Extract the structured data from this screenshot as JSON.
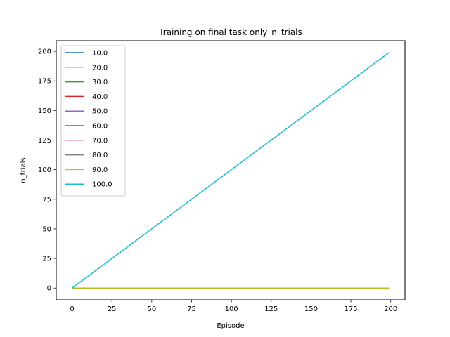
{
  "chart_data": {
    "type": "line",
    "title": "Training on final task only_n_trials",
    "xlabel": "Episode",
    "ylabel": "n_trials",
    "xlim": [
      -9.95,
      208.95
    ],
    "ylim": [
      -9.95,
      208.95
    ],
    "x_ticks": [
      0,
      25,
      50,
      75,
      100,
      125,
      150,
      175,
      200
    ],
    "y_ticks": [
      0,
      25,
      50,
      75,
      100,
      125,
      150,
      175,
      200
    ],
    "grid": false,
    "legend_position": "upper left",
    "series": [
      {
        "name": "10.0",
        "color": "#1f77b4",
        "x": [
          0,
          199
        ],
        "y": [
          0,
          0
        ]
      },
      {
        "name": "20.0",
        "color": "#ff7f0e",
        "x": [
          0,
          199
        ],
        "y": [
          0,
          0
        ]
      },
      {
        "name": "30.0",
        "color": "#2ca02c",
        "x": [
          0,
          199
        ],
        "y": [
          0,
          0
        ]
      },
      {
        "name": "40.0",
        "color": "#d62728",
        "x": [
          0,
          199
        ],
        "y": [
          0,
          0
        ]
      },
      {
        "name": "50.0",
        "color": "#9467bd",
        "x": [
          0,
          199
        ],
        "y": [
          0,
          0
        ]
      },
      {
        "name": "60.0",
        "color": "#8c564b",
        "x": [
          0,
          199
        ],
        "y": [
          0,
          0
        ]
      },
      {
        "name": "70.0",
        "color": "#e377c2",
        "x": [
          0,
          199
        ],
        "y": [
          0,
          0
        ]
      },
      {
        "name": "80.0",
        "color": "#7f7f7f",
        "x": [
          0,
          199
        ],
        "y": [
          0,
          0
        ]
      },
      {
        "name": "90.0",
        "color": "#bcbd22",
        "x": [
          0,
          199
        ],
        "y": [
          0,
          0
        ]
      },
      {
        "name": "100.0",
        "color": "#17becf",
        "x": [
          0,
          199
        ],
        "y": [
          0,
          199
        ]
      }
    ]
  }
}
